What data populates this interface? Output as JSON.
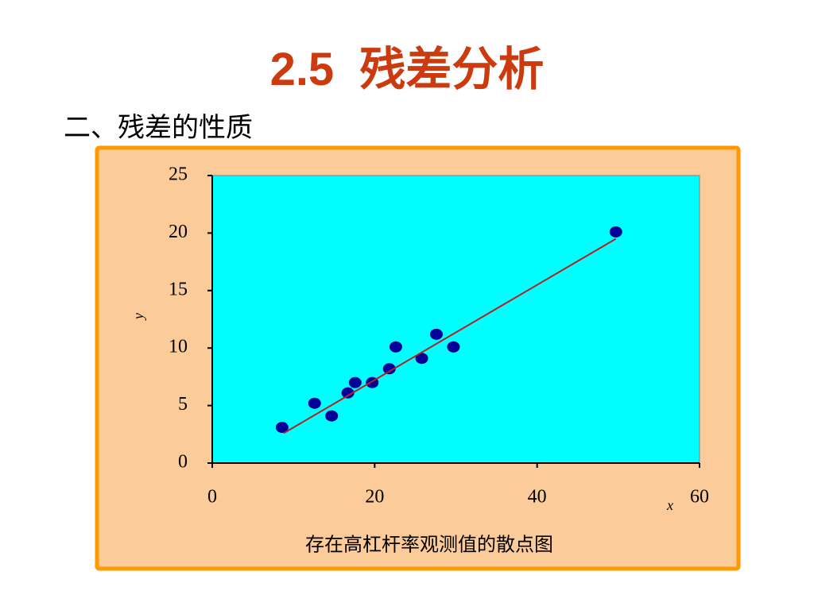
{
  "header": {
    "title": "2.5  残差分析",
    "subtitle": "二、残差的性质"
  },
  "chart_data": {
    "type": "scatter",
    "xlabel": "x",
    "ylabel": "y",
    "caption": "存在高杠杆率观测值的散点图",
    "series": [
      {
        "type": "scatter",
        "color": "#000099",
        "x": [
          8.6,
          12.6,
          14.7,
          16.7,
          17.6,
          19.7,
          21.8,
          22.6,
          25.8,
          27.6,
          29.7,
          49.7
        ],
        "values": [
          3.1,
          5.2,
          4.1,
          6.1,
          7.0,
          7.0,
          8.2,
          10.1,
          9.1,
          11.2,
          10.1,
          20.1
        ]
      },
      {
        "type": "line",
        "color": "#b22222",
        "x": [
          8.8,
          49.7
        ],
        "values": [
          2.6,
          19.5
        ]
      }
    ],
    "xlim": [
      0,
      60
    ],
    "ylim": [
      0,
      25
    ],
    "xticks": [
      0,
      20,
      40,
      60
    ],
    "yticks": [
      0,
      5,
      10,
      15,
      20,
      25
    ],
    "plot_color": "#00ffff",
    "panel_color": "#fbcb9a",
    "border_color": "#ff9900"
  }
}
